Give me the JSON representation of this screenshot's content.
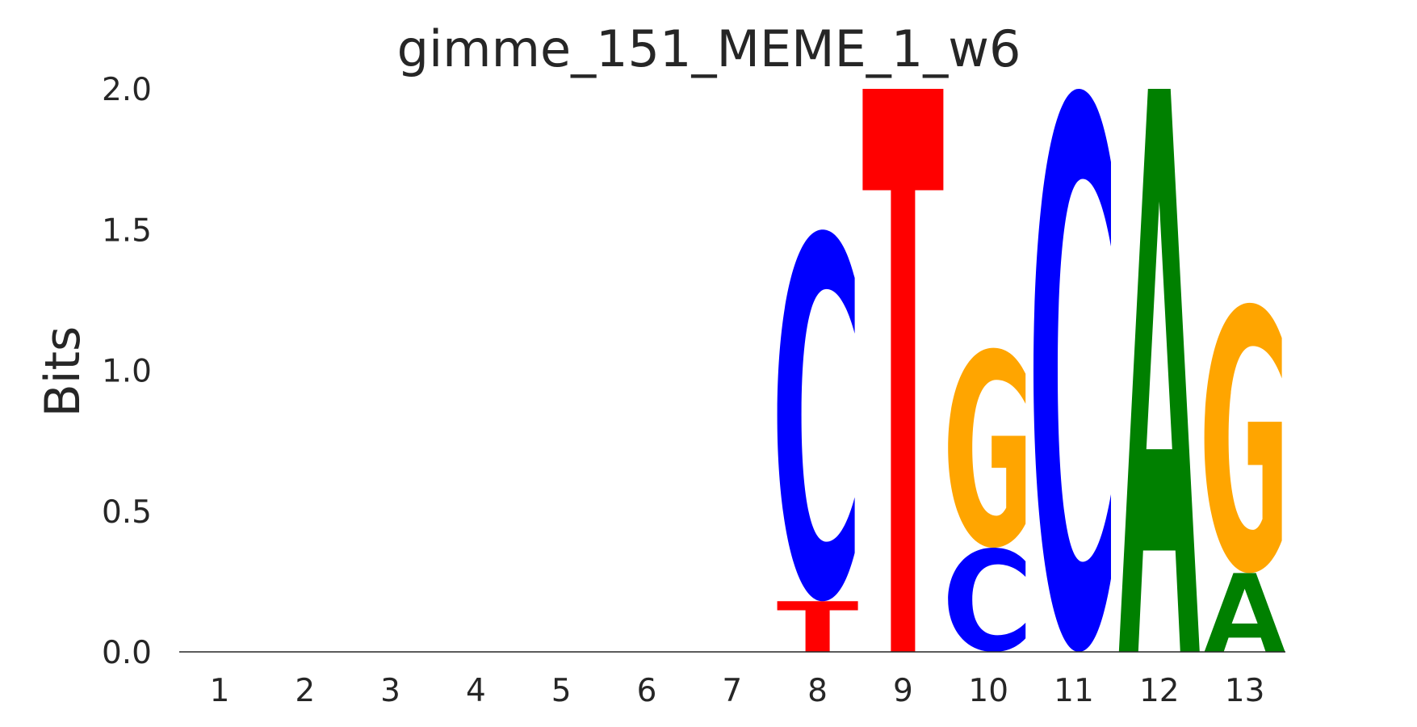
{
  "chart_data": {
    "type": "sequence-logo",
    "title": "gimme_151_MEME_1_w6",
    "xlabel": "",
    "ylabel": "Bits",
    "ylim": [
      0,
      2.0
    ],
    "yticks": [
      "0.0",
      "0.5",
      "1.0",
      "1.5",
      "2.0"
    ],
    "positions": [
      "1",
      "2",
      "3",
      "4",
      "5",
      "6",
      "7",
      "8",
      "9",
      "10",
      "11",
      "12",
      "13"
    ],
    "colors": {
      "A": "#008000",
      "C": "#0000ff",
      "G": "#ffa500",
      "T": "#ff0000"
    },
    "columns": [
      {
        "position": "1",
        "letters": []
      },
      {
        "position": "2",
        "letters": []
      },
      {
        "position": "3",
        "letters": []
      },
      {
        "position": "4",
        "letters": []
      },
      {
        "position": "5",
        "letters": []
      },
      {
        "position": "6",
        "letters": []
      },
      {
        "position": "7",
        "letters": []
      },
      {
        "position": "8",
        "letters": [
          {
            "base": "T",
            "bits": 0.18
          },
          {
            "base": "C",
            "bits": 1.32
          }
        ]
      },
      {
        "position": "9",
        "letters": [
          {
            "base": "T",
            "bits": 2.0
          }
        ]
      },
      {
        "position": "10",
        "letters": [
          {
            "base": "C",
            "bits": 0.37
          },
          {
            "base": "G",
            "bits": 0.71
          }
        ]
      },
      {
        "position": "11",
        "letters": [
          {
            "base": "C",
            "bits": 2.0
          }
        ]
      },
      {
        "position": "12",
        "letters": [
          {
            "base": "A",
            "bits": 2.0
          }
        ]
      },
      {
        "position": "13",
        "letters": [
          {
            "base": "A",
            "bits": 0.28
          },
          {
            "base": "G",
            "bits": 0.96
          }
        ]
      }
    ]
  }
}
